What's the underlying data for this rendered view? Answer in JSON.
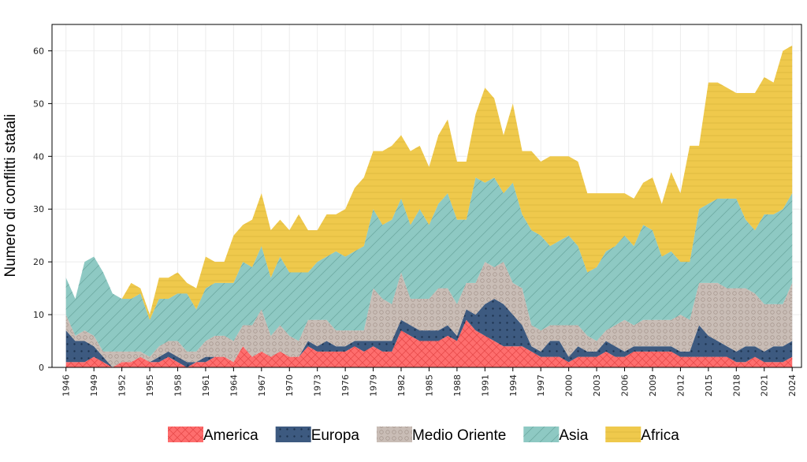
{
  "chart_data": {
    "type": "area",
    "stacked": true,
    "title": "",
    "xlabel": "",
    "ylabel": "Numero di conflitti statali",
    "ylim": [
      0,
      65
    ],
    "xlim": [
      1946,
      2024
    ],
    "grid": true,
    "legend_position": "bottom",
    "x_ticks": [
      1946,
      1949,
      1952,
      1955,
      1958,
      1961,
      1964,
      1967,
      1970,
      1973,
      1976,
      1979,
      1982,
      1985,
      1988,
      1991,
      1994,
      1997,
      2000,
      2003,
      2006,
      2009,
      2012,
      2015,
      2018,
      2021,
      2024
    ],
    "y_ticks": [
      0,
      10,
      20,
      30,
      40,
      50,
      60
    ],
    "x": [
      1946,
      1947,
      1948,
      1949,
      1950,
      1951,
      1952,
      1953,
      1954,
      1955,
      1956,
      1957,
      1958,
      1959,
      1960,
      1961,
      1962,
      1963,
      1964,
      1965,
      1966,
      1967,
      1968,
      1969,
      1970,
      1971,
      1972,
      1973,
      1974,
      1975,
      1976,
      1977,
      1978,
      1979,
      1980,
      1981,
      1982,
      1983,
      1984,
      1985,
      1986,
      1987,
      1988,
      1989,
      1990,
      1991,
      1992,
      1993,
      1994,
      1995,
      1996,
      1997,
      1998,
      1999,
      2000,
      2001,
      2002,
      2003,
      2004,
      2005,
      2006,
      2007,
      2008,
      2009,
      2010,
      2011,
      2012,
      2013,
      2014,
      2015,
      2016,
      2017,
      2018,
      2019,
      2020,
      2021,
      2022,
      2023,
      2024
    ],
    "series": [
      {
        "name": "America",
        "color": "#fe6e6e",
        "pattern": "cross",
        "values": [
          1,
          1,
          1,
          2,
          1,
          0,
          1,
          1,
          2,
          1,
          1,
          2,
          1,
          0,
          1,
          1,
          2,
          2,
          1,
          4,
          2,
          3,
          2,
          3,
          2,
          2,
          4,
          3,
          3,
          3,
          3,
          4,
          3,
          4,
          3,
          3,
          7,
          6,
          5,
          5,
          5,
          6,
          5,
          9,
          7,
          6,
          5,
          4,
          4,
          4,
          3,
          2,
          2,
          2,
          1,
          2,
          2,
          2,
          3,
          2,
          2,
          3,
          3,
          3,
          3,
          3,
          2,
          2,
          2,
          2,
          2,
          2,
          1,
          1,
          2,
          1,
          1,
          1,
          2
        ]
      },
      {
        "name": "Europa",
        "color": "#3d5a80",
        "pattern": "dots",
        "values": [
          6,
          4,
          4,
          2,
          1,
          0,
          0,
          0,
          0,
          0,
          1,
          1,
          1,
          1,
          0,
          1,
          0,
          0,
          0,
          0,
          0,
          0,
          0,
          0,
          0,
          0,
          1,
          1,
          2,
          1,
          1,
          1,
          2,
          1,
          2,
          2,
          2,
          2,
          2,
          2,
          2,
          2,
          1,
          2,
          3,
          6,
          8,
          8,
          6,
          4,
          1,
          1,
          3,
          3,
          1,
          2,
          1,
          1,
          2,
          2,
          1,
          1,
          1,
          1,
          1,
          1,
          1,
          1,
          6,
          4,
          3,
          2,
          2,
          3,
          2,
          2,
          3,
          3,
          3
        ]
      },
      {
        "name": "Medio Oriente",
        "color": "#c9bdb6",
        "pattern": "rings",
        "values": [
          3,
          1,
          2,
          2,
          1,
          3,
          2,
          2,
          1,
          1,
          2,
          2,
          3,
          2,
          2,
          3,
          4,
          4,
          4,
          4,
          6,
          8,
          4,
          5,
          4,
          3,
          4,
          5,
          4,
          3,
          3,
          2,
          2,
          10,
          8,
          7,
          9,
          5,
          6,
          6,
          8,
          7,
          6,
          5,
          6,
          8,
          6,
          8,
          6,
          7,
          4,
          4,
          3,
          3,
          6,
          4,
          3,
          2,
          2,
          4,
          6,
          4,
          5,
          5,
          5,
          5,
          7,
          6,
          8,
          10,
          11,
          11,
          12,
          11,
          10,
          9,
          8,
          8,
          11
        ]
      },
      {
        "name": "Asia",
        "color": "#8ec9c3",
        "pattern": "hatch",
        "values": [
          7,
          7,
          13,
          15,
          15,
          11,
          10,
          10,
          11,
          7,
          9,
          8,
          9,
          11,
          8,
          10,
          10,
          10,
          11,
          12,
          11,
          12,
          11,
          13,
          12,
          13,
          9,
          11,
          12,
          15,
          14,
          15,
          16,
          15,
          14,
          16,
          14,
          14,
          17,
          14,
          16,
          18,
          16,
          12,
          20,
          15,
          17,
          13,
          19,
          14,
          18,
          18,
          15,
          16,
          17,
          15,
          12,
          14,
          15,
          15,
          16,
          15,
          18,
          17,
          12,
          13,
          10,
          11,
          14,
          15,
          16,
          17,
          17,
          13,
          12,
          17,
          17,
          18,
          17
        ]
      },
      {
        "name": "Africa",
        "color": "#efc94c",
        "pattern": "horizontal",
        "values": [
          0,
          0,
          0,
          0,
          0,
          0,
          0,
          3,
          1,
          1,
          4,
          4,
          4,
          2,
          4,
          6,
          4,
          4,
          9,
          7,
          9,
          10,
          9,
          7,
          8,
          11,
          8,
          6,
          8,
          7,
          9,
          12,
          13,
          11,
          14,
          14,
          12,
          14,
          12,
          11,
          13,
          14,
          11,
          11,
          12,
          18,
          15,
          11,
          15,
          12,
          15,
          14,
          17,
          16,
          15,
          16,
          15,
          14,
          11,
          10,
          8,
          9,
          8,
          10,
          10,
          15,
          13,
          22,
          12,
          23,
          22,
          21,
          20,
          24,
          26,
          26,
          25,
          30,
          28
        ]
      }
    ]
  }
}
